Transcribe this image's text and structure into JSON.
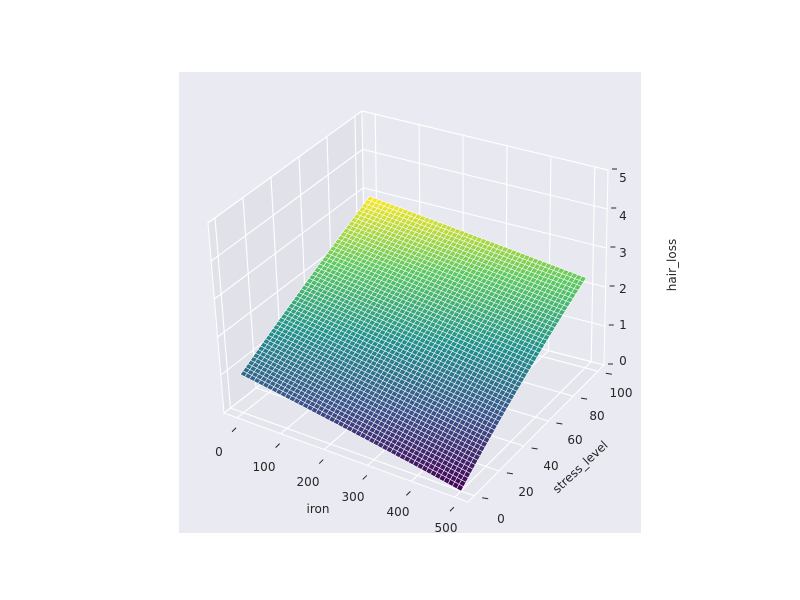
{
  "chart_data": {
    "type": "surface",
    "colormap": "viridis",
    "colormap_stops": [
      "#440154",
      "#3b528b",
      "#21918c",
      "#5ec962",
      "#fde725"
    ],
    "background_color": "#eaeaf2",
    "pane_colors": [
      "#e5e5ee",
      "#e1e1ea",
      "#e8e8f0"
    ],
    "grid": true,
    "xlabel": "iron",
    "ylabel": "stress_level",
    "zlabel": "hair_loss",
    "xlim": [
      -30,
      530
    ],
    "ylim": [
      -5,
      105
    ],
    "zlim": [
      0,
      5
    ],
    "xticks": [
      "0",
      "100",
      "200",
      "300",
      "400",
      "500"
    ],
    "yticks": [
      "0",
      "20",
      "40",
      "60",
      "80",
      "100"
    ],
    "zticks": [
      "0",
      "1",
      "2",
      "3",
      "4",
      "5"
    ],
    "x_values": [
      0,
      100,
      200,
      300,
      400,
      500
    ],
    "y_values": [
      0,
      20,
      40,
      60,
      80,
      100
    ],
    "z_corners": {
      "iron_0_stress_0": 1.0,
      "iron_500_stress_0": 0.0,
      "iron_0_stress_100": 3.0,
      "iron_500_stress_100": 2.3
    }
  }
}
